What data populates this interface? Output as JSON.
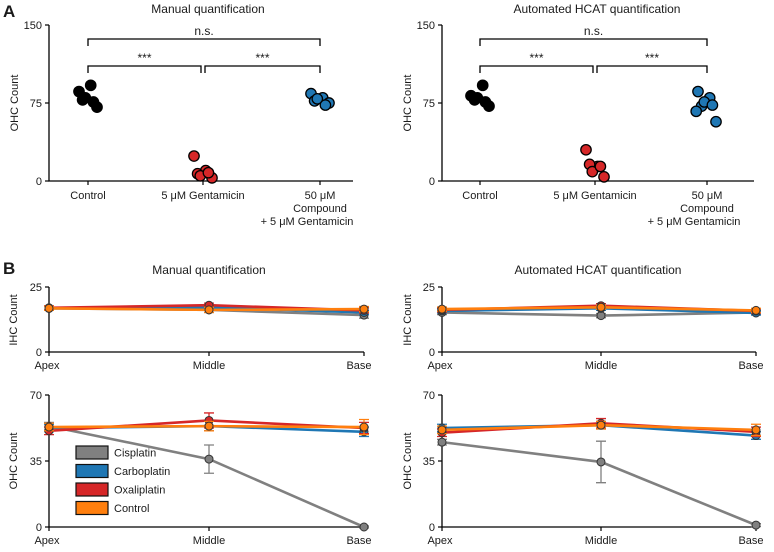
{
  "panels": {
    "a": "A",
    "b": "B"
  },
  "colors": {
    "control": "#000000",
    "gentamicin": "#d62728",
    "compound": "#1f77b4",
    "Cisplatin": "#808080",
    "Carboplatin": "#1f77b4",
    "Oxaliplatin": "#d62728",
    "Control": "#ff7f0e"
  },
  "chart_data": [
    {
      "type": "scatter",
      "title": "Manual quantification",
      "ylabel": "OHC  Count",
      "ylim": [
        0,
        150
      ],
      "yticks": [
        "0",
        "75",
        "150"
      ],
      "categories": [
        [
          "Control"
        ],
        [
          "5  μM Gentamicin"
        ],
        [
          "50  μM",
          "Compound",
          "+ 5  μM Gentamicin"
        ]
      ],
      "points": [
        [
          86,
          92,
          78,
          71,
          80,
          76
        ],
        [
          24,
          10,
          7,
          3,
          5,
          8
        ],
        [
          84,
          80,
          77,
          75,
          79,
          73
        ]
      ],
      "significance": [
        {
          "from": 0,
          "to": 2,
          "label": "n.s."
        },
        {
          "from": 0,
          "to": 1,
          "label": "***"
        },
        {
          "from": 1,
          "to": 2,
          "label": "***"
        }
      ]
    },
    {
      "type": "scatter",
      "title": "Automated HCAT quantification",
      "ylabel": "OHC Count",
      "ylim": [
        0,
        150
      ],
      "yticks": [
        "0",
        "75",
        "150"
      ],
      "categories": [
        [
          "Control"
        ],
        [
          "5  μM Gentamicin"
        ],
        [
          "50  μM",
          "Compound",
          "+ 5  μM Gentamicin"
        ]
      ],
      "points": [
        [
          82,
          92,
          78,
          72,
          80,
          76
        ],
        [
          30,
          14,
          16,
          4,
          9,
          14
        ],
        [
          86,
          80,
          72,
          57,
          76,
          73,
          67
        ]
      ],
      "significance": [
        {
          "from": 0,
          "to": 2,
          "label": "n.s."
        },
        {
          "from": 0,
          "to": 1,
          "label": "***"
        },
        {
          "from": 1,
          "to": 2,
          "label": "***"
        }
      ]
    },
    {
      "type": "line",
      "title": "Manual quantification",
      "ylabel": "IHC Count",
      "ylim": [
        0,
        25
      ],
      "yticks": [
        "0",
        "25"
      ],
      "categories": [
        "Apex",
        "Middle",
        "Base"
      ],
      "series": [
        {
          "name": "Cisplatin",
          "values": [
            16.8,
            16.2,
            14.2
          ],
          "err": [
            0.8,
            1.0,
            1.2
          ]
        },
        {
          "name": "Carboplatin",
          "values": [
            16.8,
            17.2,
            15.2
          ],
          "err": [
            0.8,
            0.8,
            0.8
          ]
        },
        {
          "name": "Oxaliplatin",
          "values": [
            17.0,
            18.0,
            16.0
          ],
          "err": [
            0.8,
            0.8,
            1.0
          ]
        },
        {
          "name": "Control",
          "values": [
            16.8,
            16.2,
            16.5
          ],
          "err": [
            0.8,
            1.0,
            1.0
          ]
        }
      ]
    },
    {
      "type": "line",
      "title": "Automated HCAT quantification",
      "ylabel": "IHC Count",
      "ylim": [
        0,
        25
      ],
      "yticks": [
        "0",
        "25"
      ],
      "categories": [
        "Apex",
        "Middle",
        "Base"
      ],
      "series": [
        {
          "name": "Cisplatin",
          "values": [
            15.2,
            14.0,
            15.2
          ],
          "err": [
            0.8,
            0.8,
            0.8
          ]
        },
        {
          "name": "Carboplatin",
          "values": [
            15.8,
            16.8,
            15.0
          ],
          "err": [
            0.8,
            0.8,
            0.8
          ]
        },
        {
          "name": "Oxaliplatin",
          "values": [
            16.2,
            17.8,
            15.8
          ],
          "err": [
            0.8,
            0.8,
            0.8
          ]
        },
        {
          "name": "Control",
          "values": [
            16.5,
            17.2,
            16.0
          ],
          "err": [
            0.8,
            0.8,
            0.8
          ]
        }
      ]
    },
    {
      "type": "line",
      "ylabel": "OHC Count",
      "ylim": [
        0,
        70
      ],
      "yticks": [
        "0",
        "35",
        "70"
      ],
      "categories": [
        "Apex",
        "Middle",
        "Base"
      ],
      "legend": [
        "Cisplatin",
        "Carboplatin",
        "Oxaliplatin",
        "Control"
      ],
      "series": [
        {
          "name": "Cisplatin",
          "values": [
            53.5,
            36.0,
            0.0
          ],
          "err": [
            2.0,
            7.5,
            0.5
          ]
        },
        {
          "name": "Carboplatin",
          "values": [
            52.5,
            53.5,
            50.5
          ],
          "err": [
            2.0,
            2.5,
            2.5
          ]
        },
        {
          "name": "Oxaliplatin",
          "values": [
            51.0,
            56.5,
            52.5
          ],
          "err": [
            2.0,
            4.0,
            3.0
          ]
        },
        {
          "name": "Control",
          "values": [
            53.0,
            53.5,
            53.0
          ],
          "err": [
            2.0,
            2.5,
            4.0
          ]
        }
      ]
    },
    {
      "type": "line",
      "ylabel": "OHC Count",
      "ylim": [
        0,
        70
      ],
      "yticks": [
        "0",
        "35",
        "70"
      ],
      "categories": [
        "Apex",
        "Middle",
        "Base"
      ],
      "series": [
        {
          "name": "Cisplatin",
          "values": [
            45.0,
            34.5,
            1.0
          ],
          "err": [
            1.5,
            11.0,
            0.8
          ]
        },
        {
          "name": "Carboplatin",
          "values": [
            52.5,
            54.0,
            48.5
          ],
          "err": [
            2.0,
            2.0,
            2.0
          ]
        },
        {
          "name": "Oxaliplatin",
          "values": [
            50.0,
            55.0,
            50.5
          ],
          "err": [
            2.0,
            2.5,
            2.5
          ]
        },
        {
          "name": "Control",
          "values": [
            51.5,
            54.0,
            51.5
          ],
          "err": [
            2.0,
            2.0,
            3.0
          ]
        }
      ]
    }
  ]
}
